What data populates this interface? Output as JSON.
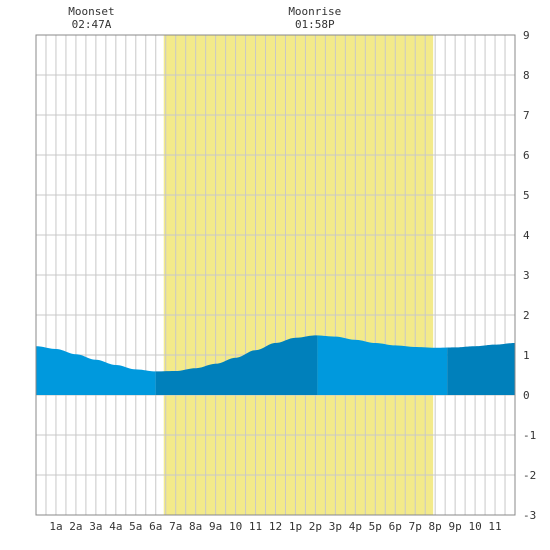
{
  "moon_events": [
    {
      "label": "Moonset",
      "time": "02:47A"
    },
    {
      "label": "Moonrise",
      "time": "01:58P"
    }
  ],
  "colors": {
    "daylight": "#f3ea8a",
    "tide_light": "#0099dd",
    "tide_dark": "#0080bb",
    "grid": "#c8c8c8",
    "frame": "#888888"
  },
  "chart_data": {
    "type": "area",
    "title": "",
    "xlabel": "",
    "ylabel": "",
    "ylim": [
      -3,
      9
    ],
    "xlim": [
      0,
      24
    ],
    "y_ticks": [
      "9",
      "8",
      "7",
      "6",
      "5",
      "4",
      "3",
      "2",
      "1",
      "0",
      "-1",
      "-2",
      "-3"
    ],
    "x_ticks": [
      {
        "x": 1,
        "label": "1a"
      },
      {
        "x": 2,
        "label": "2a"
      },
      {
        "x": 3,
        "label": "3a"
      },
      {
        "x": 4,
        "label": "4a"
      },
      {
        "x": 5,
        "label": "5a"
      },
      {
        "x": 6,
        "label": "6a"
      },
      {
        "x": 7,
        "label": "7a"
      },
      {
        "x": 8,
        "label": "8a"
      },
      {
        "x": 9,
        "label": "9a"
      },
      {
        "x": 10,
        "label": "10"
      },
      {
        "x": 11,
        "label": "11"
      },
      {
        "x": 12,
        "label": "12"
      },
      {
        "x": 13,
        "label": "1p"
      },
      {
        "x": 14,
        "label": "2p"
      },
      {
        "x": 15,
        "label": "3p"
      },
      {
        "x": 16,
        "label": "4p"
      },
      {
        "x": 17,
        "label": "5p"
      },
      {
        "x": 18,
        "label": "6p"
      },
      {
        "x": 19,
        "label": "7p"
      },
      {
        "x": 20,
        "label": "8p"
      },
      {
        "x": 21,
        "label": "9p"
      },
      {
        "x": 22,
        "label": "10"
      },
      {
        "x": 23,
        "label": "11"
      }
    ],
    "grid": true,
    "daylight_hours": [
      6.4,
      19.9
    ],
    "moon_event_hours": [
      2.78,
      13.97
    ],
    "tide_segments": [
      {
        "shade": "light",
        "x_start": 0,
        "x_end": 6.0
      },
      {
        "shade": "dark",
        "x_start": 6.0,
        "x_end": 14.1
      },
      {
        "shade": "light",
        "x_start": 14.1,
        "x_end": 20.6
      },
      {
        "shade": "dark",
        "x_start": 20.6,
        "x_end": 24
      }
    ],
    "series": [
      {
        "x": [
          0,
          1,
          2,
          3,
          4,
          5,
          6,
          7,
          8,
          9,
          10,
          11,
          12,
          13,
          14,
          15,
          16,
          17,
          18,
          19,
          20,
          21,
          22,
          23,
          24
        ],
        "values": [
          1.22,
          1.15,
          1.02,
          0.88,
          0.75,
          0.64,
          0.59,
          0.6,
          0.67,
          0.78,
          0.93,
          1.12,
          1.3,
          1.43,
          1.49,
          1.46,
          1.38,
          1.3,
          1.24,
          1.2,
          1.18,
          1.19,
          1.22,
          1.26,
          1.3
        ]
      }
    ]
  }
}
